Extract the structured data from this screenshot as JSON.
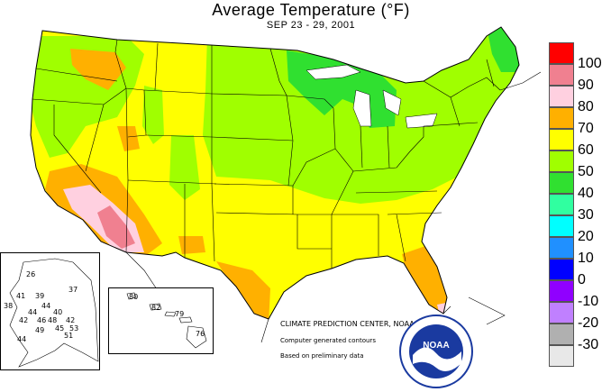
{
  "title": "Average Temperature (°F)",
  "subtitle": "SEP 23 - 29, 2001",
  "credits": {
    "center": "CLIMATE PREDICTION CENTER, NOAA",
    "contours": "Computer generated contours",
    "data": "Based on preliminary data"
  },
  "logo": {
    "text": "NOAA",
    "icon": "noaa-logo"
  },
  "legend": {
    "bins": [
      {
        "label": "100",
        "color": "#ff0000"
      },
      {
        "label": "90",
        "color": "#f08090"
      },
      {
        "label": "80",
        "color": "#ffd0e0"
      },
      {
        "label": "70",
        "color": "#ffb000"
      },
      {
        "label": "60",
        "color": "#ffff00"
      },
      {
        "label": "50",
        "color": "#a0ff00"
      },
      {
        "label": "40",
        "color": "#30e030"
      },
      {
        "label": "30",
        "color": "#30ffa0"
      },
      {
        "label": "20",
        "color": "#00ffff"
      },
      {
        "label": "10",
        "color": "#2090ff"
      },
      {
        "label": "0",
        "color": "#0000ff"
      },
      {
        "label": "-10",
        "color": "#9000ff"
      },
      {
        "label": "-20",
        "color": "#c080ff"
      },
      {
        "label": "-30",
        "color": "#b0b0b0"
      },
      {
        "label": "",
        "color": "#e8e8e8"
      }
    ]
  },
  "alaska_stations": [
    "26",
    "37",
    "41",
    "39",
    "38",
    "44",
    "44",
    "40",
    "42",
    "46",
    "48",
    "42",
    "49",
    "45",
    "51",
    "53",
    "44"
  ],
  "hawaii_stations": [
    "80",
    "82",
    "79",
    "76"
  ]
}
